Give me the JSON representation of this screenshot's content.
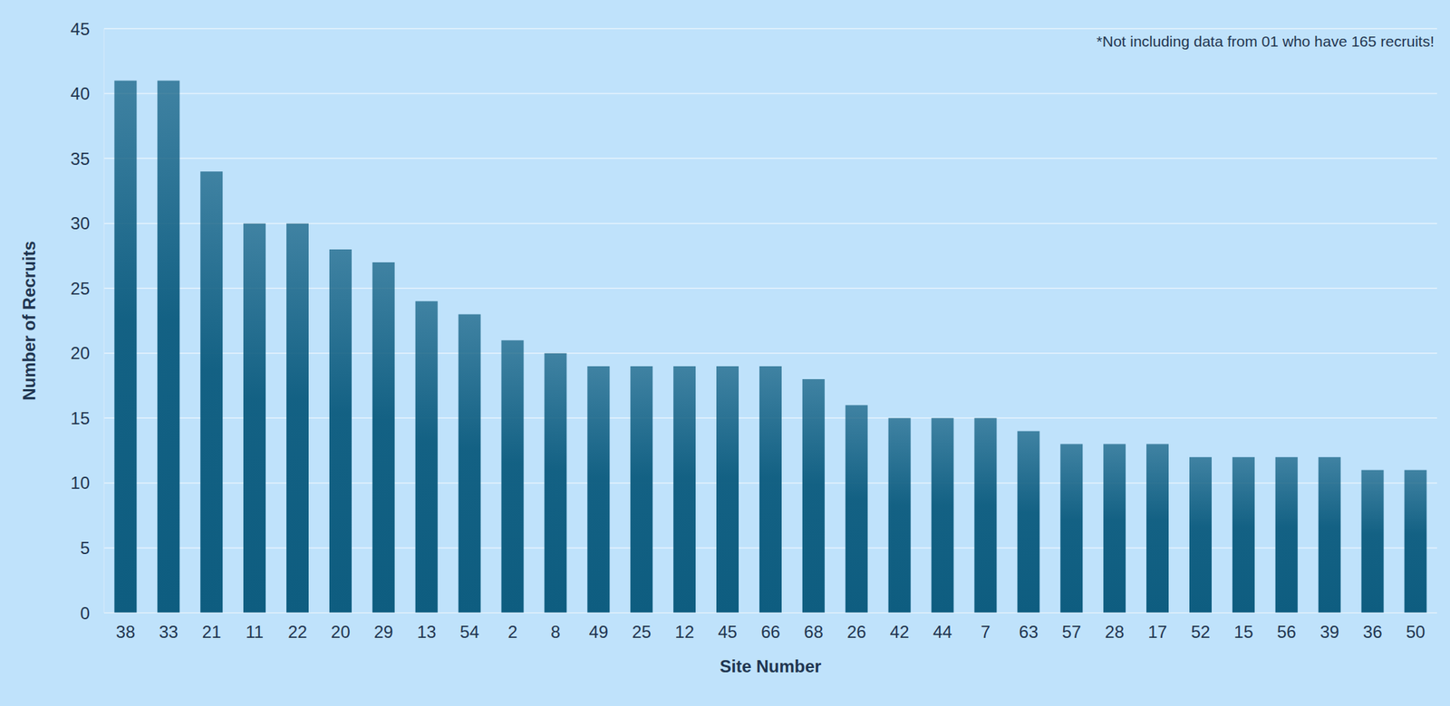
{
  "chart_data": {
    "type": "bar",
    "annotation": "*Not including data from 01 who have 165 recruits!",
    "x_label": "Site Number",
    "y_label": "Number of Recruits",
    "categories": [
      "38",
      "33",
      "21",
      "11",
      "22",
      "20",
      "29",
      "13",
      "54",
      "2",
      "8",
      "49",
      "25",
      "12",
      "45",
      "66",
      "68",
      "26",
      "42",
      "44",
      "7",
      "63",
      "57",
      "28",
      "17",
      "52",
      "15",
      "56",
      "39",
      "36",
      "50"
    ],
    "values": [
      41,
      41,
      34,
      30,
      30,
      28,
      27,
      24,
      23,
      21,
      20,
      19,
      19,
      19,
      19,
      19,
      18,
      16,
      15,
      15,
      15,
      14,
      13,
      13,
      13,
      12,
      12,
      12,
      12,
      11,
      11
    ],
    "color": "#0e5d80",
    "ylim": [
      0,
      45
    ],
    "yticks": [
      0,
      5,
      10,
      15,
      20,
      25,
      30,
      35,
      40,
      45
    ],
    "grid": true
  }
}
